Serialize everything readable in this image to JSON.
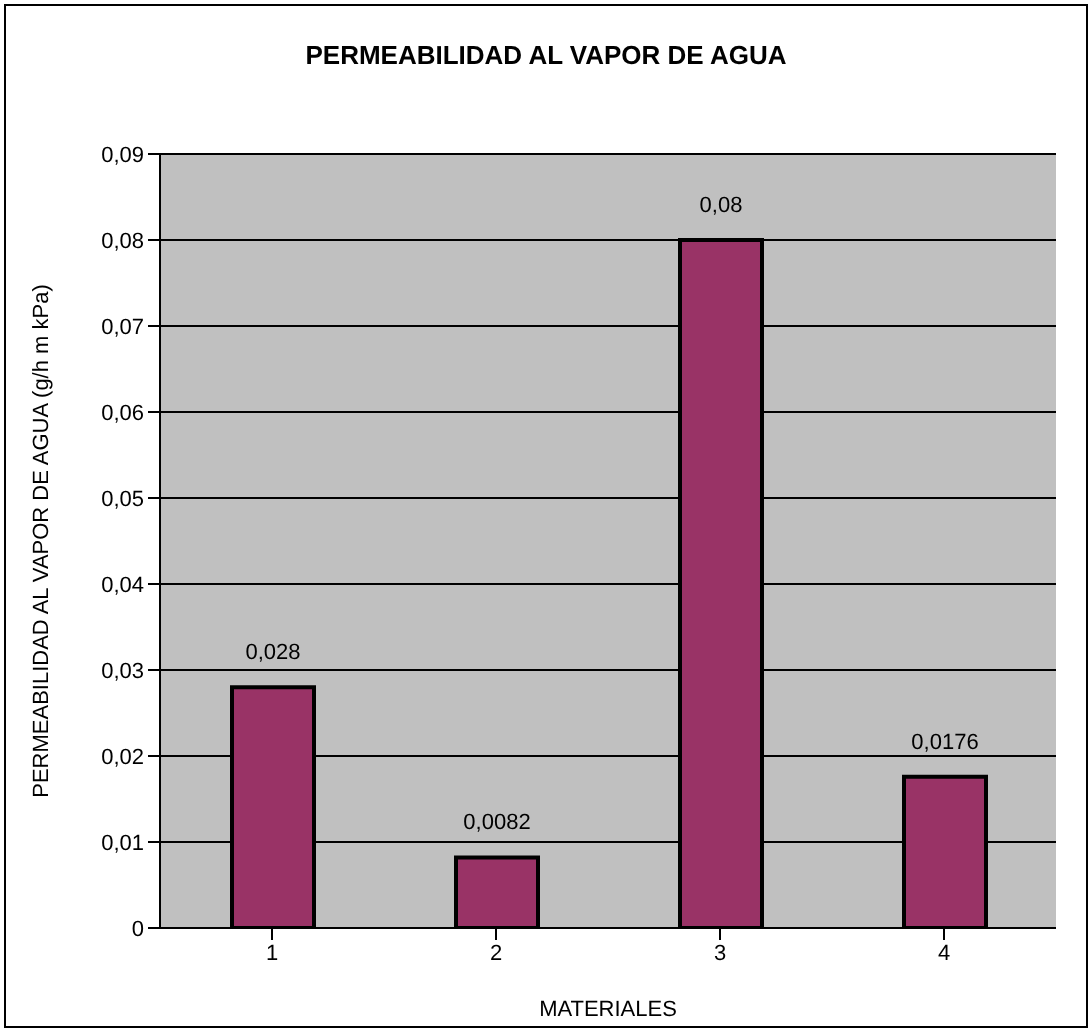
{
  "chart_data": {
    "type": "bar",
    "title": "PERMEABILIDAD AL VAPOR DE AGUA",
    "xlabel": "MATERIALES",
    "ylabel": "PERMEABILIDAD AL VAPOR DE AGUA (g/h m kPa)",
    "categories": [
      "1",
      "2",
      "3",
      "4"
    ],
    "values": [
      0.028,
      0.0082,
      0.08,
      0.0176
    ],
    "value_labels": [
      "0,028",
      "0,0082",
      "0,08",
      "0,0176"
    ],
    "color": "#993366",
    "ylim": [
      0,
      0.09
    ],
    "yticks": [
      0,
      {
        "value": 0.01,
        "label": "0,01"
      },
      {
        "value": 0.02,
        "label": "0,02"
      },
      {
        "value": 0.03,
        "label": "0,03"
      },
      {
        "value": 0.04,
        "label": "0,04"
      },
      {
        "value": 0.05,
        "label": "0,05"
      },
      {
        "value": 0.06,
        "label": "0,06"
      },
      {
        "value": 0.07,
        "label": "0,07"
      },
      {
        "value": 0.08,
        "label": "0,08"
      },
      {
        "value": 0.09,
        "label": "0,09"
      }
    ],
    "grid": "y"
  }
}
